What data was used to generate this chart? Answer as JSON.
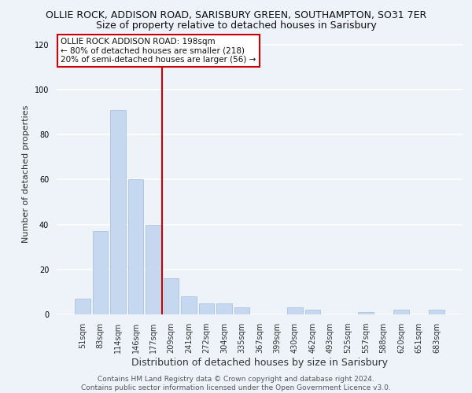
{
  "title": "OLLIE ROCK, ADDISON ROAD, SARISBURY GREEN, SOUTHAMPTON, SO31 7ER",
  "subtitle": "Size of property relative to detached houses in Sarisbury",
  "xlabel": "Distribution of detached houses by size in Sarisbury",
  "ylabel": "Number of detached properties",
  "categories": [
    "51sqm",
    "83sqm",
    "114sqm",
    "146sqm",
    "177sqm",
    "209sqm",
    "241sqm",
    "272sqm",
    "304sqm",
    "335sqm",
    "367sqm",
    "399sqm",
    "430sqm",
    "462sqm",
    "493sqm",
    "525sqm",
    "557sqm",
    "588sqm",
    "620sqm",
    "651sqm",
    "683sqm"
  ],
  "values": [
    7,
    37,
    91,
    60,
    40,
    16,
    8,
    5,
    5,
    3,
    0,
    0,
    3,
    2,
    0,
    0,
    1,
    0,
    2,
    0,
    2
  ],
  "bar_color": "#c5d8ef",
  "bar_edge_color": "#a0bcd8",
  "ylim": [
    0,
    125
  ],
  "yticks": [
    0,
    20,
    40,
    60,
    80,
    100,
    120
  ],
  "vline_x_index": 4.5,
  "vline_color": "#cc0000",
  "annotation_text": "OLLIE ROCK ADDISON ROAD: 198sqm\n← 80% of detached houses are smaller (218)\n20% of semi-detached houses are larger (56) →",
  "annotation_box_color": "#ffffff",
  "annotation_box_edge_color": "#cc0000",
  "footer": "Contains HM Land Registry data © Crown copyright and database right 2024.\nContains public sector information licensed under the Open Government Licence v3.0.",
  "bg_color": "#eef2f9",
  "grid_color": "#ffffff",
  "title_fontsize": 9,
  "subtitle_fontsize": 9,
  "ylabel_fontsize": 8,
  "xlabel_fontsize": 9,
  "tick_fontsize": 7,
  "annotation_fontsize": 7.5,
  "footer_fontsize": 6.5
}
